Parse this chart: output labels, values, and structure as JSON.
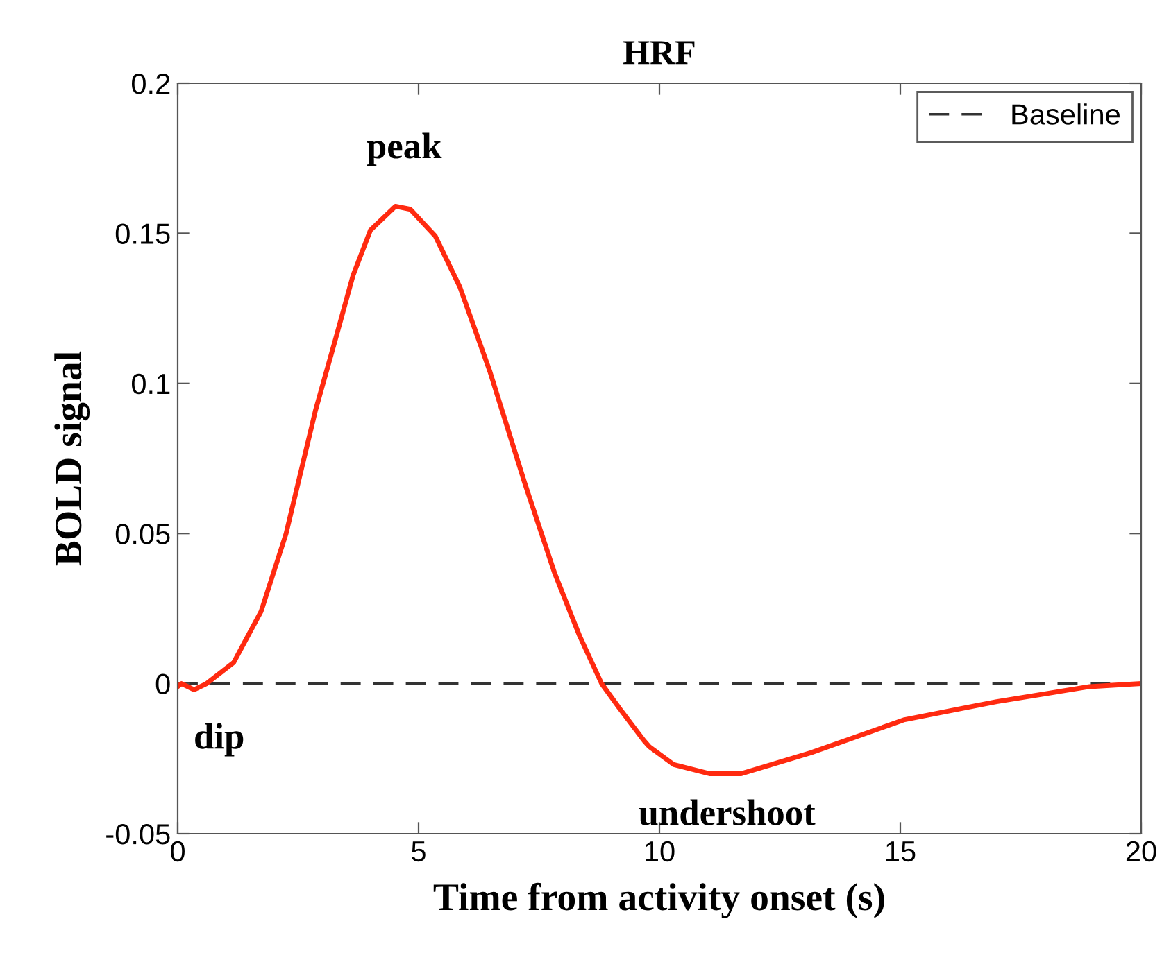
{
  "chart_data": {
    "type": "line",
    "title": "HRF",
    "xlabel": "Time from activity onset (s)",
    "ylabel": "BOLD signal",
    "series": [
      {
        "color": "#ff2a10",
        "x": [
          0,
          0.08,
          0.34,
          0.6,
          1.16,
          1.73,
          2.25,
          2.86,
          3.28,
          3.64,
          4.0,
          4.52,
          4.83,
          5.35,
          5.86,
          6.48,
          7.2,
          7.82,
          8.34,
          8.8,
          9.16,
          9.68,
          9.79,
          10.3,
          11.04,
          11.7,
          13.15,
          15.09,
          17.0,
          18.93,
          20
        ],
        "values": [
          -0.001,
          0,
          -0.002,
          0,
          0.007,
          0.024,
          0.05,
          0.091,
          0.115,
          0.136,
          0.151,
          0.159,
          0.158,
          0.149,
          0.132,
          0.104,
          0.067,
          0.037,
          0.016,
          0,
          -0.008,
          -0.019,
          -0.021,
          -0.027,
          -0.03,
          -0.03,
          -0.023,
          -0.012,
          -0.006,
          -0.001,
          0
        ]
      }
    ],
    "ref_lines": [
      {
        "axis": "y",
        "value": 0,
        "label": "Baseline",
        "color": "#333333",
        "line_style": "dashed"
      }
    ],
    "annotations": [
      {
        "text": "peak",
        "x": 4.7,
        "y": 0.16
      },
      {
        "text": "dip",
        "x": 0.3,
        "y": -0.002
      },
      {
        "text": "undershoot",
        "x": 11.4,
        "y": -0.03
      }
    ],
    "xlim": [
      0,
      20
    ],
    "xticks": [
      0,
      5,
      10,
      15,
      20
    ],
    "ylim": [
      -0.05,
      0.2
    ],
    "yticks": [
      -0.05,
      0,
      0.05,
      0.1,
      0.15,
      0.2
    ],
    "legend": "top right",
    "grid": false
  }
}
